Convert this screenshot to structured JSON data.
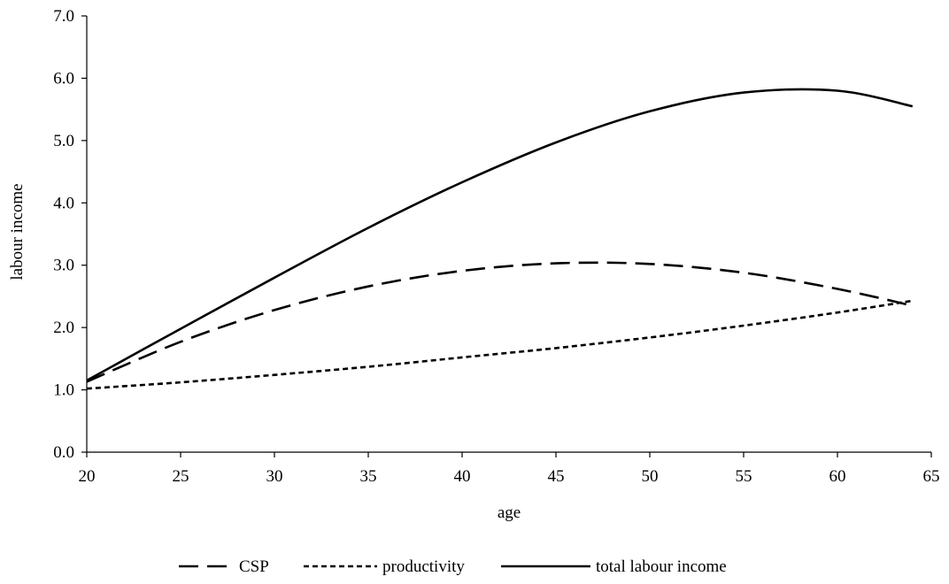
{
  "chart_data": {
    "type": "line",
    "title": "",
    "xlabel": "age",
    "ylabel": "labour income",
    "xlim": [
      20,
      65
    ],
    "ylim": [
      0,
      7
    ],
    "x_ticks": [
      "20",
      "25",
      "30",
      "35",
      "40",
      "45",
      "50",
      "55",
      "60",
      "65"
    ],
    "y_ticks": [
      "0.0",
      "1.0",
      "2.0",
      "3.0",
      "4.0",
      "5.0",
      "6.0",
      "7.0"
    ],
    "grid": false,
    "legend_position": "bottom",
    "x": [
      20,
      25,
      30,
      35,
      40,
      45,
      50,
      55,
      60,
      64
    ],
    "series": [
      {
        "name": "CSP",
        "style": "long-dash",
        "values": [
          1.13,
          1.77,
          2.28,
          2.66,
          2.91,
          3.03,
          3.02,
          2.88,
          2.62,
          2.35
        ]
      },
      {
        "name": "productivity",
        "style": "short-dash",
        "values": [
          1.02,
          1.12,
          1.24,
          1.37,
          1.52,
          1.67,
          1.84,
          2.03,
          2.24,
          2.43
        ]
      },
      {
        "name": "total labour income",
        "style": "solid",
        "values": [
          1.15,
          1.98,
          2.8,
          3.6,
          4.33,
          4.97,
          5.47,
          5.77,
          5.8,
          5.55
        ]
      }
    ]
  }
}
